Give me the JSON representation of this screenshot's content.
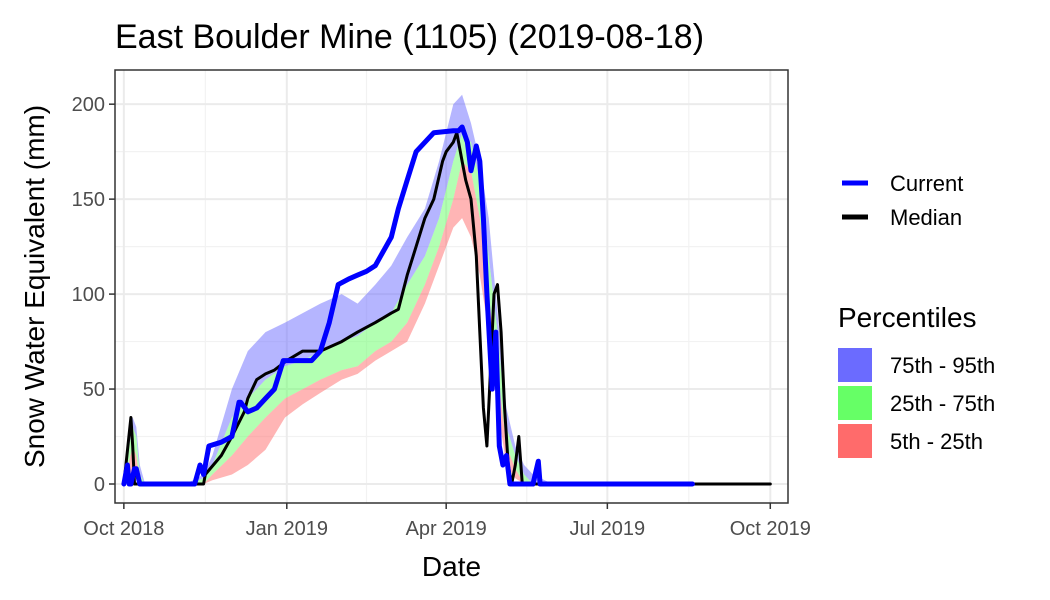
{
  "chart_data": {
    "type": "area",
    "title": "East Boulder Mine (1105) (2019-08-18)",
    "xlabel": "Date",
    "ylabel": "Snow Water Equivalent (mm)",
    "xlim": [
      "2018-09-26",
      "2019-10-11"
    ],
    "ylim": [
      -10,
      218
    ],
    "grid": true,
    "x_ticks": [
      {
        "date": "2018-10-01",
        "label": "Oct 2018"
      },
      {
        "date": "2019-01-01",
        "label": "Jan 2019"
      },
      {
        "date": "2019-04-01",
        "label": "Apr 2019"
      },
      {
        "date": "2019-07-01",
        "label": "Jul 2019"
      },
      {
        "date": "2019-10-01",
        "label": "Oct 2019"
      }
    ],
    "y_ticks": [
      0,
      50,
      100,
      150,
      200
    ],
    "legend": {
      "lines_title": "",
      "lines": [
        {
          "name": "Current",
          "color": "#0000ff"
        },
        {
          "name": "Median",
          "color": "#000000"
        }
      ],
      "bands_title": "Percentiles",
      "bands": [
        {
          "name": "75th - 95th",
          "color": "#6b6bff"
        },
        {
          "name": "25th - 75th",
          "color": "#66ff66"
        },
        {
          "name": "5th - 25th",
          "color": "#ff6b6b"
        }
      ]
    },
    "percentile_dates": [
      "2018-10-01",
      "2018-10-03",
      "2018-10-06",
      "2018-10-08",
      "2018-10-10",
      "2018-10-13",
      "2018-10-18",
      "2018-10-25",
      "2018-11-05",
      "2018-11-15",
      "2018-11-20",
      "2018-12-01",
      "2018-12-10",
      "2018-12-20",
      "2018-12-31",
      "2019-01-10",
      "2019-01-20",
      "2019-02-01",
      "2019-02-10",
      "2019-02-20",
      "2019-03-01",
      "2019-03-10",
      "2019-03-20",
      "2019-03-28",
      "2019-04-05",
      "2019-04-10",
      "2019-04-15",
      "2019-04-20",
      "2019-04-25",
      "2019-04-30",
      "2019-05-05",
      "2019-05-10",
      "2019-05-15",
      "2019-05-20",
      "2019-05-31",
      "2019-06-15"
    ],
    "series": [
      {
        "name": "p95",
        "values": [
          0,
          22,
          35,
          30,
          10,
          0,
          0,
          0,
          0,
          5,
          15,
          50,
          70,
          80,
          85,
          90,
          95,
          100,
          95,
          105,
          115,
          130,
          145,
          170,
          200,
          205,
          190,
          170,
          140,
          90,
          40,
          20,
          10,
          5,
          0,
          0
        ]
      },
      {
        "name": "p75",
        "values": [
          0,
          15,
          30,
          25,
          5,
          0,
          0,
          0,
          0,
          3,
          10,
          35,
          45,
          55,
          62,
          65,
          70,
          75,
          78,
          85,
          90,
          105,
          120,
          140,
          170,
          185,
          180,
          160,
          120,
          80,
          30,
          15,
          5,
          0,
          0,
          0
        ]
      },
      {
        "name": "p25",
        "values": [
          0,
          8,
          20,
          15,
          2,
          0,
          0,
          0,
          0,
          0,
          5,
          15,
          25,
          35,
          45,
          50,
          55,
          60,
          62,
          70,
          75,
          85,
          105,
          125,
          150,
          170,
          165,
          140,
          100,
          60,
          20,
          8,
          0,
          0,
          0,
          0
        ]
      },
      {
        "name": "p5",
        "values": [
          0,
          2,
          8,
          5,
          0,
          0,
          0,
          0,
          0,
          0,
          2,
          5,
          10,
          18,
          35,
          42,
          48,
          55,
          58,
          65,
          70,
          75,
          95,
          115,
          135,
          140,
          130,
          110,
          80,
          40,
          10,
          3,
          0,
          0,
          0,
          0
        ]
      },
      {
        "name": "Current",
        "dates": [
          "2018-10-01",
          "2018-10-03",
          "2018-10-04",
          "2018-10-05",
          "2018-10-07",
          "2018-10-08",
          "2018-10-10",
          "2018-10-12",
          "2018-10-13",
          "2018-10-14",
          "2018-10-15",
          "2018-11-10",
          "2018-11-13",
          "2018-11-15",
          "2018-11-18",
          "2018-11-25",
          "2018-12-01",
          "2018-12-05",
          "2018-12-06",
          "2018-12-10",
          "2018-12-15",
          "2018-12-20",
          "2018-12-25",
          "2018-12-30",
          "2018-12-31",
          "2019-01-15",
          "2019-01-20",
          "2019-01-25",
          "2019-01-30",
          "2019-02-05",
          "2019-02-10",
          "2019-02-15",
          "2019-02-20",
          "2019-03-01",
          "2019-03-05",
          "2019-03-10",
          "2019-03-15",
          "2019-03-25",
          "2019-04-05",
          "2019-04-08",
          "2019-04-10",
          "2019-04-13",
          "2019-04-15",
          "2019-04-18",
          "2019-04-20",
          "2019-04-22",
          "2019-04-24",
          "2019-04-27",
          "2019-04-29",
          "2019-05-01",
          "2019-05-03",
          "2019-05-05",
          "2019-05-07",
          "2019-05-10",
          "2019-05-20",
          "2019-05-23",
          "2019-05-24",
          "2019-05-25",
          "2019-06-01",
          "2019-08-18"
        ],
        "values": [
          0,
          10,
          0,
          0,
          8,
          8,
          0,
          0,
          0,
          0,
          0,
          0,
          10,
          5,
          20,
          22,
          25,
          43,
          43,
          38,
          40,
          45,
          50,
          65,
          65,
          65,
          70,
          85,
          105,
          108,
          110,
          112,
          115,
          130,
          145,
          160,
          175,
          185,
          186,
          186,
          188,
          180,
          165,
          178,
          170,
          140,
          100,
          50,
          80,
          20,
          10,
          15,
          0,
          0,
          0,
          12,
          0,
          0,
          0,
          0
        ]
      },
      {
        "name": "Median",
        "dates": [
          "2018-10-01",
          "2018-10-05",
          "2018-10-06",
          "2018-10-07",
          "2018-10-08",
          "2018-10-09",
          "2018-10-10",
          "2018-10-11",
          "2018-11-15",
          "2018-11-16",
          "2018-11-25",
          "2018-12-01",
          "2018-12-08",
          "2018-12-10",
          "2018-12-15",
          "2018-12-20",
          "2018-12-25",
          "2019-01-01",
          "2019-01-10",
          "2019-01-20",
          "2019-02-01",
          "2019-02-10",
          "2019-02-20",
          "2019-03-01",
          "2019-03-05",
          "2019-03-10",
          "2019-03-15",
          "2019-03-20",
          "2019-03-25",
          "2019-03-30",
          "2019-04-01",
          "2019-04-05",
          "2019-04-07",
          "2019-04-10",
          "2019-04-12",
          "2019-04-15",
          "2019-04-18",
          "2019-04-20",
          "2019-04-22",
          "2019-04-24",
          "2019-04-26",
          "2019-04-28",
          "2019-04-30",
          "2019-05-02",
          "2019-05-04",
          "2019-05-06",
          "2019-05-08",
          "2019-05-10",
          "2019-05-12",
          "2019-05-14",
          "2019-05-15",
          "2019-05-31",
          "2019-07-01",
          "2019-10-01"
        ],
        "values": [
          0,
          35,
          20,
          0,
          0,
          0,
          0,
          0,
          0,
          5,
          15,
          25,
          38,
          45,
          55,
          58,
          60,
          65,
          70,
          70,
          75,
          80,
          85,
          90,
          92,
          110,
          125,
          140,
          150,
          170,
          175,
          180,
          185,
          170,
          160,
          150,
          120,
          80,
          40,
          20,
          60,
          100,
          105,
          80,
          40,
          10,
          0,
          10,
          25,
          0,
          0,
          0,
          0,
          0
        ]
      }
    ]
  }
}
